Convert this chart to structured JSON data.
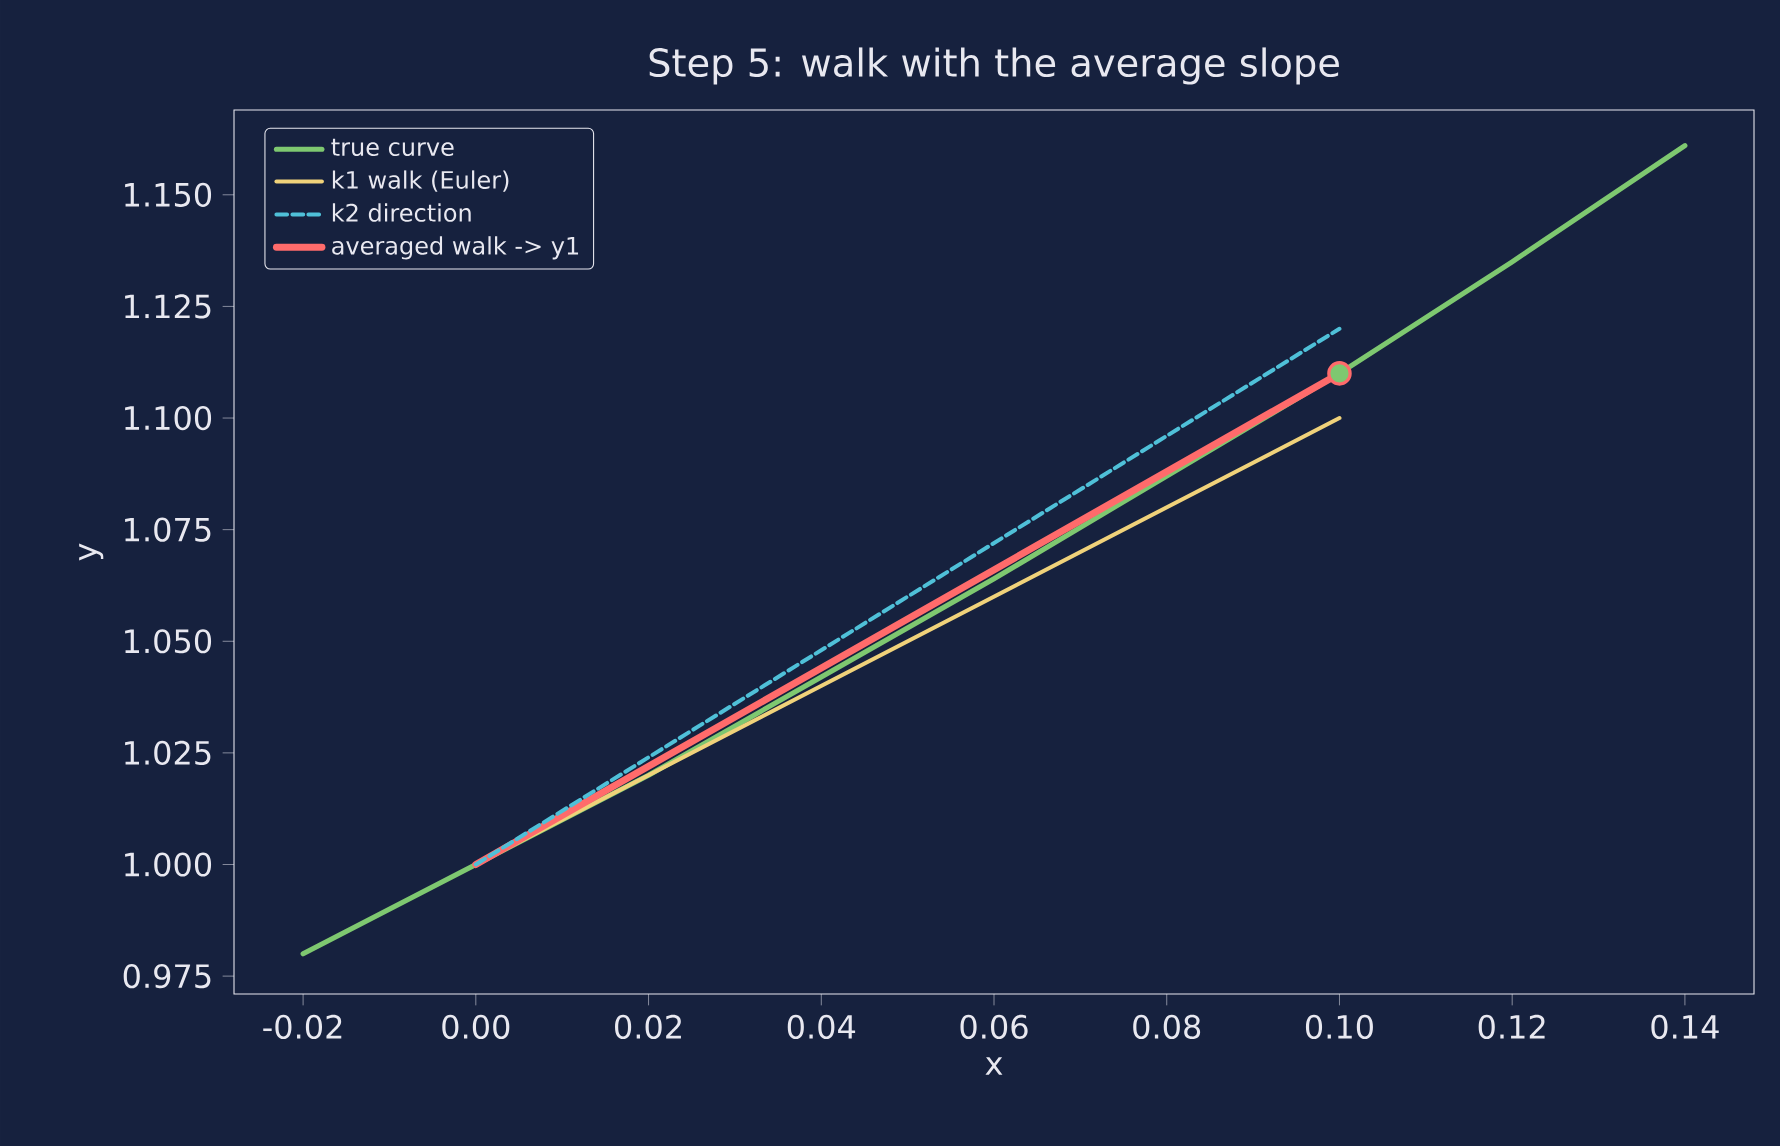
{
  "chart_data": {
    "type": "line",
    "title": "Step 5: walk with the average slope",
    "xlabel": "x",
    "ylabel": "y",
    "series": [
      {
        "name": "true curve",
        "color": "#7ec870",
        "line_style": "solid",
        "x": [
          -0.02,
          0.0,
          0.02,
          0.04,
          0.06,
          0.08,
          0.1,
          0.12,
          0.14
        ],
        "values": [
          0.98,
          1.0,
          1.02,
          1.042,
          1.064,
          1.087,
          1.11,
          1.135,
          1.161
        ]
      },
      {
        "name": "k1 walk (Euler)",
        "color": "#f0d27a",
        "line_style": "solid",
        "x": [
          0.0,
          0.1
        ],
        "values": [
          1.0,
          1.1
        ]
      },
      {
        "name": "k2 direction",
        "color": "#4fc0d8",
        "line_style": "dashed",
        "x": [
          0.0,
          0.1
        ],
        "values": [
          1.0,
          1.12
        ]
      },
      {
        "name": "averaged walk -> y1",
        "color": "#ff6b6b",
        "line_style": "solid",
        "x": [
          0.0,
          0.1
        ],
        "values": [
          1.0,
          1.11
        ]
      },
      {
        "type": "scatter",
        "color": "#7ec870",
        "x": [
          0.1
        ],
        "values": [
          1.11
        ]
      }
    ],
    "xlim": [
      -0.028,
      0.148
    ],
    "ylim": [
      0.971,
      1.169
    ],
    "xticks": [
      {
        "value": -0.02,
        "label": "-0.02"
      },
      {
        "value": 0.0,
        "label": "0.00"
      },
      {
        "value": 0.02,
        "label": "0.02"
      },
      {
        "value": 0.04,
        "label": "0.04"
      },
      {
        "value": 0.06,
        "label": "0.06"
      },
      {
        "value": 0.08,
        "label": "0.08"
      },
      {
        "value": 0.1,
        "label": "0.10"
      },
      {
        "value": 0.12,
        "label": "0.12"
      },
      {
        "value": 0.14,
        "label": "0.14"
      }
    ],
    "yticks": [
      {
        "value": 0.975,
        "label": "0.975"
      },
      {
        "value": 1.0,
        "label": "1.000"
      },
      {
        "value": 1.025,
        "label": "1.025"
      },
      {
        "value": 1.05,
        "label": "1.050"
      },
      {
        "value": 1.075,
        "label": "1.075"
      },
      {
        "value": 1.1,
        "label": "1.100"
      },
      {
        "value": 1.125,
        "label": "1.125"
      },
      {
        "value": 1.15,
        "label": "1.150"
      }
    ],
    "legend": "top left",
    "grid": false
  }
}
